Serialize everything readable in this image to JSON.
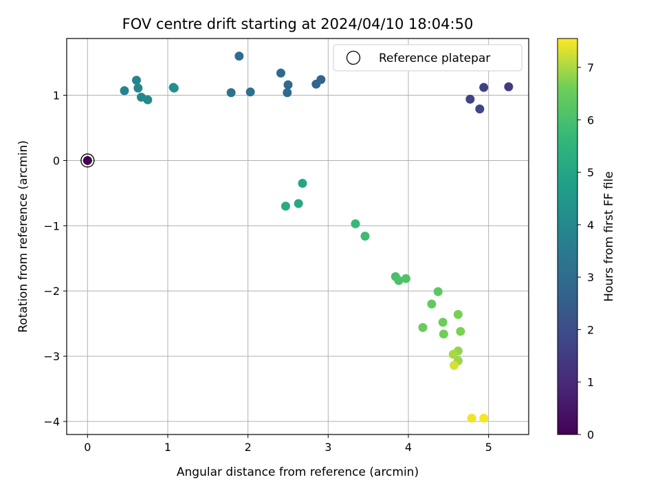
{
  "chart_data": {
    "type": "scatter",
    "title": "FOV centre drift starting at 2024/04/10 18:04:50",
    "xlabel": "Angular distance from reference (arcmin)",
    "ylabel": "Rotation from reference (arcmin)",
    "xlim": [
      -0.26,
      5.5
    ],
    "ylim": [
      -4.2,
      1.87
    ],
    "xticks": [
      0,
      1,
      2,
      3,
      4,
      5
    ],
    "yticks": [
      -4,
      -3,
      -2,
      -1,
      0,
      1
    ],
    "grid": true,
    "colorbar": {
      "label": "Hours from first FF file",
      "range": [
        0,
        7.55
      ],
      "ticks": [
        0,
        1,
        2,
        3,
        4,
        5,
        6,
        7
      ],
      "colormap": "viridis"
    },
    "legend": {
      "label": "Reference platepar",
      "position": "top-right"
    },
    "reference_point": {
      "x": 0,
      "y": 0,
      "hours": 0
    },
    "points": [
      {
        "x": 5.25,
        "y": 1.13,
        "hours": 1.5
      },
      {
        "x": 4.94,
        "y": 1.12,
        "hours": 1.6
      },
      {
        "x": 4.77,
        "y": 0.94,
        "hours": 1.7
      },
      {
        "x": 4.89,
        "y": 0.79,
        "hours": 1.8
      },
      {
        "x": 2.91,
        "y": 1.24,
        "hours": 2.7
      },
      {
        "x": 2.85,
        "y": 1.17,
        "hours": 2.75
      },
      {
        "x": 2.41,
        "y": 1.34,
        "hours": 2.85
      },
      {
        "x": 2.5,
        "y": 1.16,
        "hours": 2.9
      },
      {
        "x": 2.49,
        "y": 1.04,
        "hours": 2.95
      },
      {
        "x": 1.89,
        "y": 1.6,
        "hours": 3.0
      },
      {
        "x": 2.03,
        "y": 1.05,
        "hours": 3.1
      },
      {
        "x": 1.79,
        "y": 1.04,
        "hours": 3.2
      },
      {
        "x": 0.46,
        "y": 1.07,
        "hours": 3.8
      },
      {
        "x": 0.61,
        "y": 1.23,
        "hours": 3.85
      },
      {
        "x": 0.63,
        "y": 1.11,
        "hours": 3.9
      },
      {
        "x": 0.67,
        "y": 0.97,
        "hours": 3.95
      },
      {
        "x": 0.75,
        "y": 0.93,
        "hours": 4.0
      },
      {
        "x": 1.07,
        "y": 1.12,
        "hours": 4.2
      },
      {
        "x": 1.08,
        "y": 1.11,
        "hours": 4.25
      },
      {
        "x": 2.68,
        "y": -0.35,
        "hours": 5.0
      },
      {
        "x": 2.63,
        "y": -0.66,
        "hours": 5.1
      },
      {
        "x": 2.47,
        "y": -0.7,
        "hours": 5.2
      },
      {
        "x": 3.34,
        "y": -0.97,
        "hours": 5.7
      },
      {
        "x": 3.46,
        "y": -1.16,
        "hours": 5.8
      },
      {
        "x": 3.84,
        "y": -1.78,
        "hours": 6.0
      },
      {
        "x": 3.88,
        "y": -1.84,
        "hours": 6.05
      },
      {
        "x": 3.97,
        "y": -1.81,
        "hours": 6.1
      },
      {
        "x": 4.37,
        "y": -2.01,
        "hours": 6.3
      },
      {
        "x": 4.29,
        "y": -2.2,
        "hours": 6.4
      },
      {
        "x": 4.18,
        "y": -2.56,
        "hours": 6.5
      },
      {
        "x": 4.43,
        "y": -2.48,
        "hours": 6.55
      },
      {
        "x": 4.44,
        "y": -2.66,
        "hours": 6.6
      },
      {
        "x": 4.62,
        "y": -2.36,
        "hours": 6.65
      },
      {
        "x": 4.65,
        "y": -2.62,
        "hours": 6.7
      },
      {
        "x": 4.62,
        "y": -2.92,
        "hours": 6.85
      },
      {
        "x": 4.62,
        "y": -3.07,
        "hours": 6.9
      },
      {
        "x": 4.56,
        "y": -2.97,
        "hours": 7.0
      },
      {
        "x": 4.57,
        "y": -3.14,
        "hours": 7.3
      },
      {
        "x": 4.79,
        "y": -3.95,
        "hours": 7.45
      },
      {
        "x": 4.94,
        "y": -3.95,
        "hours": 7.5
      }
    ]
  }
}
